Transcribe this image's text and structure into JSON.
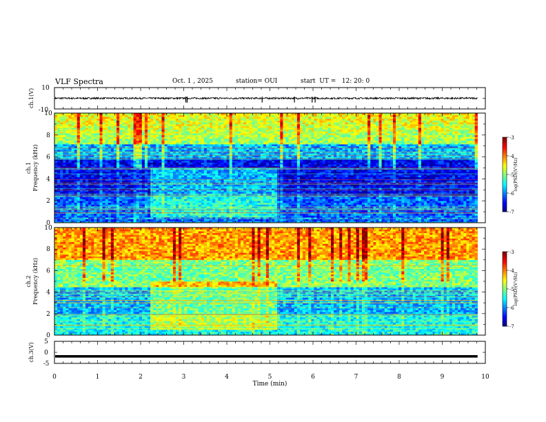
{
  "header": {
    "title": "VLF Spectra",
    "date": "Oct. 1 , 2025",
    "station": "station= OUI",
    "start_ut": "start  UT =   12: 20: 0"
  },
  "chart_data": [
    {
      "id": "ch1_waveform",
      "type": "line",
      "ylabel": "ch.1(V)",
      "ylim": [
        -10,
        10
      ],
      "yticks": [
        "10",
        "-10"
      ],
      "xlim": [
        0,
        10
      ],
      "series": [
        {
          "name": "ch.1 amplitude",
          "baseline": 0,
          "approx_amplitude": 0.8,
          "spikes_at_min": [
            3.05,
            3.08,
            4.82,
            5.57,
            5.98,
            6.05
          ]
        }
      ],
      "color": "#000000"
    },
    {
      "id": "ch1_spectrogram",
      "type": "heatmap",
      "ylabel": "ch.1\nFrequency (kHz)",
      "ylabel_line1": "ch.1",
      "ylabel_line2": "Frequency (kHz)",
      "ylim": [
        0,
        10
      ],
      "yticks": [
        "0",
        "2",
        "4",
        "6",
        "8",
        "10"
      ],
      "xlim": [
        0,
        10
      ],
      "data_end_min": 9.82,
      "enhanced_band_min": [
        2.25,
        5.2
      ],
      "enhanced_band_khz": [
        0.5,
        5.0
      ],
      "colorbar": {
        "label": "log(PSD)(V²/Hz)",
        "range": [
          -7,
          -3
        ],
        "ticks": [
          "-3",
          "-4",
          "-5",
          "-6",
          "-7"
        ]
      }
    },
    {
      "id": "ch2_spectrogram",
      "type": "heatmap",
      "ylabel": "ch.2\nFrequency (kHz)",
      "ylabel_line1": "ch.2",
      "ylabel_line2": "Frequency (kHz)",
      "ylim": [
        0,
        10
      ],
      "yticks": [
        "0",
        "2",
        "4",
        "6",
        "8",
        "10"
      ],
      "xlim": [
        0,
        10
      ],
      "data_end_min": 9.82,
      "enhanced_band_min": [
        2.25,
        5.2
      ],
      "enhanced_band_khz": [
        0.5,
        5.0
      ],
      "colorbar": {
        "label": "log(PSD)(V²/Hz)",
        "range": [
          -7,
          -3
        ],
        "ticks": [
          "-3",
          "-4",
          "-5",
          "-6",
          "-7"
        ]
      }
    },
    {
      "id": "ch3_waveform",
      "type": "line",
      "ylabel": "ch.3(V)",
      "ylim": [
        -5,
        5
      ],
      "yticks": [
        "5",
        "0",
        "-5"
      ],
      "xlim": [
        0,
        10
      ],
      "series": [
        {
          "name": "ch.3 amplitude",
          "baseline": -1.5,
          "approx_amplitude": 0.25
        }
      ],
      "color": "#000000"
    }
  ],
  "xaxis": {
    "label": "Time (min)",
    "ticks": [
      "0",
      "1",
      "2",
      "3",
      "4",
      "5",
      "6",
      "7",
      "8",
      "9",
      "10"
    ]
  },
  "colors": {
    "jet_low": "#00008f",
    "jet_high": "#800000"
  }
}
